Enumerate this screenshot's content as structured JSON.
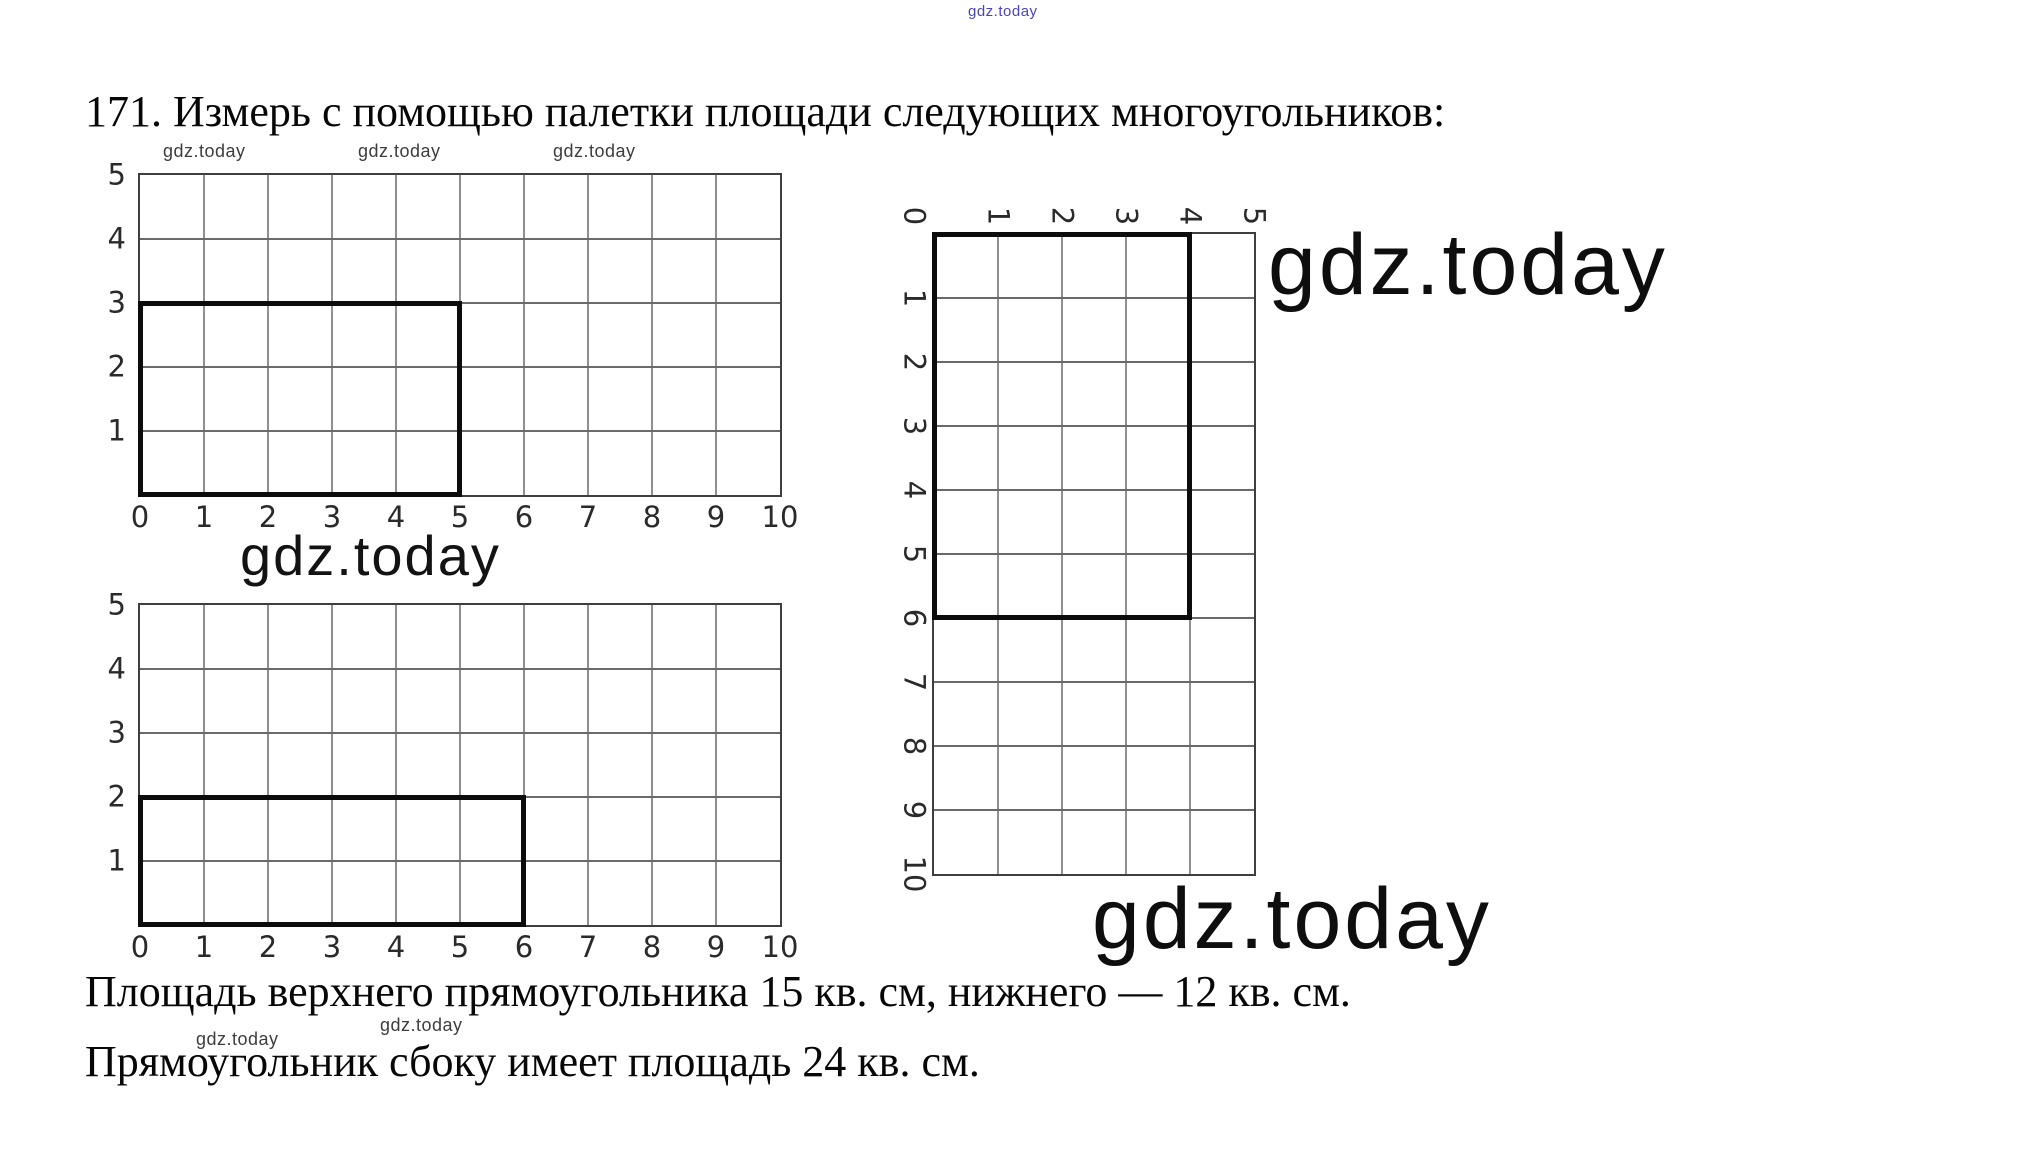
{
  "page": {
    "title": "171. Измерь с помощью палетки площади следующих многоугольников:",
    "caption_line1": "Площадь верхнего прямоугольника 15 кв. см, нижнего — 12 кв. см.",
    "caption_line2": "Прямоугольник сбоку имеет площадь 24 кв. см."
  },
  "watermark": {
    "text": "gdz.today",
    "color_small": "#3d3d3d",
    "color_large": "#0e0e0e",
    "color_blue": "#4a44bd"
  },
  "figures": {
    "top_left_grid": {
      "cols": 10,
      "rows": 5,
      "x_labels": [
        "0",
        "1",
        "2",
        "3",
        "4",
        "5",
        "6",
        "7",
        "8",
        "9",
        "10"
      ],
      "y_labels": [
        "5",
        "4",
        "3",
        "2",
        "1"
      ],
      "rect_cols": 5,
      "rect_rows": 3
    },
    "bottom_left_grid": {
      "cols": 10,
      "rows": 5,
      "x_labels": [
        "0",
        "1",
        "2",
        "3",
        "4",
        "5",
        "6",
        "7",
        "8",
        "9",
        "10"
      ],
      "y_labels": [
        "5",
        "4",
        "3",
        "2",
        "1"
      ],
      "rect_cols": 6,
      "rect_rows": 2
    },
    "right_grid": {
      "cols": 5,
      "rows": 10,
      "corner_label": "0",
      "top_labels": [
        "1",
        "2",
        "3",
        "4",
        "5"
      ],
      "side_labels": [
        "1",
        "2",
        "3",
        "4",
        "5",
        "6",
        "7",
        "8",
        "9",
        "10"
      ],
      "rect_cols": 4,
      "rect_rows": 6
    }
  }
}
